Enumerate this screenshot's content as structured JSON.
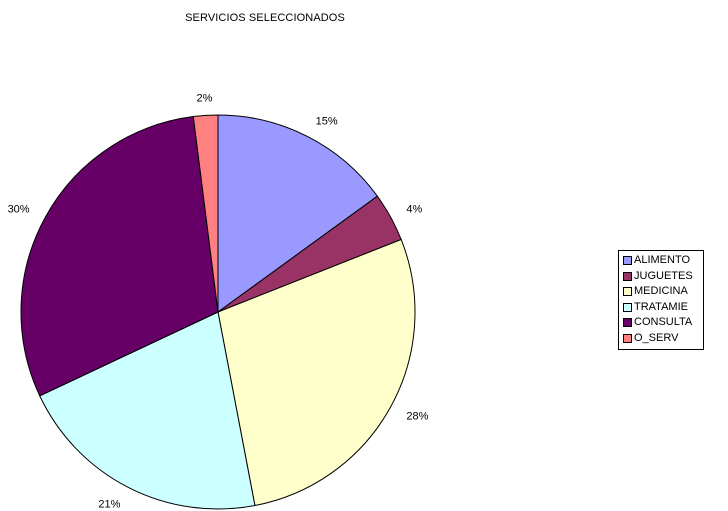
{
  "chart_data": {
    "type": "pie",
    "title": "SERVICIOS SELECCIONADOS",
    "legend_position": "right",
    "slices": [
      {
        "name": "ALIMENTO",
        "value": 15,
        "label": "15%",
        "color": "#9999ff"
      },
      {
        "name": "JUGUETES",
        "value": 4,
        "label": "4%",
        "color": "#993366"
      },
      {
        "name": "MEDICINA",
        "value": 28,
        "label": "28%",
        "color": "#ffffcc"
      },
      {
        "name": "TRATAMIE",
        "value": 21,
        "label": "21%",
        "color": "#ccffff"
      },
      {
        "name": "CONSULTA",
        "value": 30,
        "label": "30%",
        "color": "#660066"
      },
      {
        "name": "O_SERV",
        "value": 2,
        "label": "2%",
        "color": "#ff8080"
      }
    ]
  }
}
